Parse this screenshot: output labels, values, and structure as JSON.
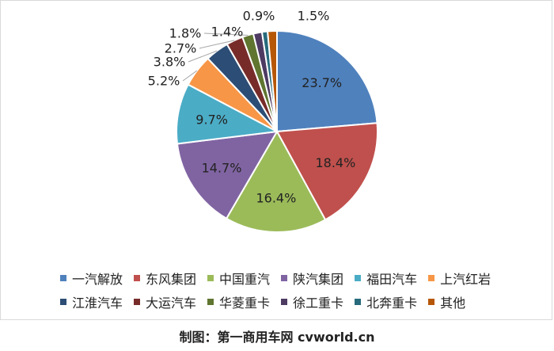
{
  "chart_data": {
    "type": "pie",
    "categories": [
      "一汽解放",
      "东风集团",
      "中国重汽",
      "陕汽集团",
      "福田汽车",
      "上汽红岩",
      "江淮汽车",
      "大运汽车",
      "华菱重卡",
      "徐工重卡",
      "北奔重卡",
      "其他"
    ],
    "values": [
      23.7,
      18.4,
      16.4,
      14.7,
      9.7,
      5.2,
      3.8,
      2.7,
      1.8,
      1.4,
      0.9,
      1.5
    ],
    "labels": [
      "23.7%",
      "18.4%",
      "16.4%",
      "14.7%",
      "9.7%",
      "5.2%",
      "3.8%",
      "2.7%",
      "1.8%",
      "1.4%",
      "0.9%",
      "1.5%"
    ],
    "colors": [
      "#4f81bd",
      "#c0504d",
      "#9bbb59",
      "#8064a2",
      "#4bacc6",
      "#f79646",
      "#2c4d75",
      "#772c2a",
      "#5f7530",
      "#4d3b62",
      "#276a7c",
      "#b65708"
    ],
    "legend": "bottom"
  },
  "legend_rows": [
    [
      {
        "label": "一汽解放",
        "color": "#4f81bd"
      },
      {
        "label": "东风集团",
        "color": "#c0504d"
      },
      {
        "label": "中国重汽",
        "color": "#9bbb59"
      },
      {
        "label": "陕汽集团",
        "color": "#8064a2"
      },
      {
        "label": "福田汽车",
        "color": "#4bacc6"
      },
      {
        "label": "上汽红岩",
        "color": "#f79646"
      }
    ],
    [
      {
        "label": "江淮汽车",
        "color": "#2c4d75"
      },
      {
        "label": "大运汽车",
        "color": "#772c2a"
      },
      {
        "label": "华菱重卡",
        "color": "#5f7530"
      },
      {
        "label": "徐工重卡",
        "color": "#4d3b62"
      },
      {
        "label": "北奔重卡",
        "color": "#276a7c"
      },
      {
        "label": "其他",
        "color": "#b65708"
      }
    ]
  ],
  "caption": "制图：第一商用车网 cvworld.cn"
}
